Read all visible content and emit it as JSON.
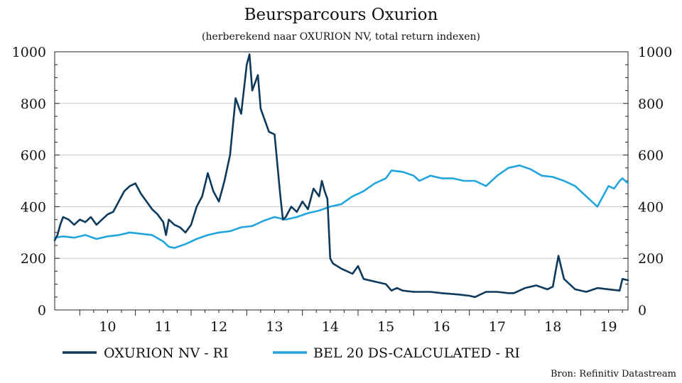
{
  "chart_data": {
    "type": "line",
    "title": "Beursparcours Oxurion",
    "subtitle": "(herberekend naar OXURION NV, total return indexen)",
    "source": "Bron: Refinitiv Datastream",
    "xlim": [
      2009.05,
      2019.35
    ],
    "ylim": [
      0,
      1000
    ],
    "y_ticks": [
      0,
      200,
      400,
      600,
      800,
      1000
    ],
    "x_ticks": [
      {
        "label": "10",
        "pos": 2010
      },
      {
        "label": "11",
        "pos": 2011
      },
      {
        "label": "12",
        "pos": 2012
      },
      {
        "label": "13",
        "pos": 2013
      },
      {
        "label": "14",
        "pos": 2014
      },
      {
        "label": "15",
        "pos": 2015
      },
      {
        "label": "16",
        "pos": 2016
      },
      {
        "label": "17",
        "pos": 2017
      },
      {
        "label": "18",
        "pos": 2018
      },
      {
        "label": "19",
        "pos": 2019
      }
    ],
    "grid": true,
    "legend_position": "bottom",
    "series": [
      {
        "name": "OXURION NV - RI",
        "color": "#0d3a5c",
        "x": [
          2009.05,
          2009.1,
          2009.15,
          2009.2,
          2009.3,
          2009.4,
          2009.5,
          2009.6,
          2009.7,
          2009.8,
          2009.9,
          2010.0,
          2010.1,
          2010.2,
          2010.3,
          2010.4,
          2010.5,
          2010.6,
          2010.7,
          2010.8,
          2010.9,
          2011.0,
          2011.05,
          2011.1,
          2011.2,
          2011.3,
          2011.4,
          2011.5,
          2011.6,
          2011.7,
          2011.8,
          2011.9,
          2012.0,
          2012.1,
          2012.2,
          2012.3,
          2012.4,
          2012.5,
          2012.55,
          2012.6,
          2012.7,
          2012.75,
          2012.8,
          2012.9,
          2013.0,
          2013.1,
          2013.15,
          2013.2,
          2013.3,
          2013.4,
          2013.5,
          2013.6,
          2013.7,
          2013.8,
          2013.85,
          2013.9,
          2013.95,
          2014.0,
          2014.05,
          2014.2,
          2014.4,
          2014.5,
          2014.6,
          2014.8,
          2015.0,
          2015.1,
          2015.2,
          2015.3,
          2015.5,
          2015.8,
          2016.0,
          2016.3,
          2016.5,
          2016.6,
          2016.8,
          2017.0,
          2017.2,
          2017.3,
          2017.5,
          2017.7,
          2017.9,
          2018.0,
          2018.05,
          2018.1,
          2018.2,
          2018.4,
          2018.6,
          2018.8,
          2019.0,
          2019.2,
          2019.25,
          2019.35
        ],
        "values": [
          270,
          290,
          330,
          360,
          350,
          330,
          350,
          340,
          360,
          330,
          350,
          370,
          380,
          420,
          460,
          480,
          490,
          450,
          420,
          390,
          370,
          340,
          290,
          350,
          330,
          320,
          300,
          330,
          400,
          440,
          530,
          460,
          420,
          500,
          600,
          820,
          760,
          950,
          990,
          850,
          910,
          780,
          750,
          690,
          680,
          450,
          350,
          360,
          400,
          380,
          420,
          390,
          470,
          440,
          500,
          460,
          430,
          200,
          180,
          160,
          140,
          170,
          120,
          110,
          100,
          75,
          85,
          75,
          70,
          70,
          65,
          60,
          55,
          50,
          70,
          70,
          65,
          65,
          85,
          95,
          80,
          90,
          150,
          210,
          120,
          80,
          70,
          85,
          80,
          75,
          120,
          115
        ]
      },
      {
        "name": "BEL 20 DS-CALCULATED - RI",
        "color": "#22a5dc",
        "x": [
          2009.05,
          2009.2,
          2009.4,
          2009.6,
          2009.8,
          2010.0,
          2010.2,
          2010.4,
          2010.6,
          2010.8,
          2011.0,
          2011.1,
          2011.2,
          2011.4,
          2011.6,
          2011.8,
          2012.0,
          2012.2,
          2012.4,
          2012.6,
          2012.8,
          2013.0,
          2013.2,
          2013.4,
          2013.6,
          2013.8,
          2014.0,
          2014.2,
          2014.4,
          2014.6,
          2014.8,
          2015.0,
          2015.1,
          2015.3,
          2015.5,
          2015.6,
          2015.8,
          2016.0,
          2016.2,
          2016.4,
          2016.6,
          2016.8,
          2017.0,
          2017.2,
          2017.4,
          2017.6,
          2017.8,
          2018.0,
          2018.2,
          2018.4,
          2018.6,
          2018.8,
          2019.0,
          2019.1,
          2019.2,
          2019.25,
          2019.35
        ],
        "values": [
          280,
          285,
          280,
          290,
          275,
          285,
          290,
          300,
          295,
          290,
          265,
          245,
          240,
          255,
          275,
          290,
          300,
          305,
          320,
          325,
          345,
          360,
          350,
          360,
          375,
          385,
          400,
          410,
          440,
          460,
          490,
          510,
          540,
          535,
          520,
          500,
          520,
          510,
          510,
          500,
          500,
          480,
          520,
          550,
          560,
          545,
          520,
          515,
          500,
          480,
          440,
          400,
          480,
          470,
          500,
          510,
          490
        ]
      }
    ]
  }
}
